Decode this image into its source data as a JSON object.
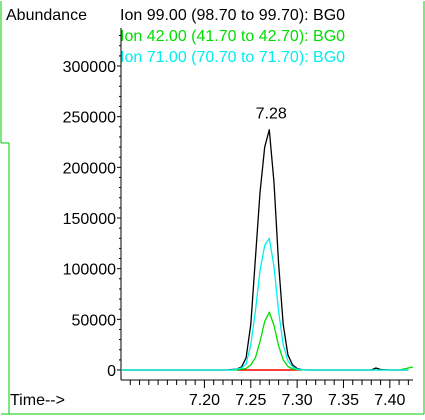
{
  "chart_data": {
    "type": "line",
    "ylabel": "Abundance",
    "xlabel": "Time-->",
    "xlim": [
      7.11,
      7.425
    ],
    "ylim": [
      0,
      350000
    ],
    "x_ticks": [
      7.2,
      7.25,
      7.3,
      7.35,
      7.4
    ],
    "x_tick_labels": [
      "7.20",
      "7.25",
      "7.30",
      "7.35",
      "7.40"
    ],
    "y_ticks": [
      0,
      50000,
      100000,
      150000,
      200000,
      250000,
      300000
    ],
    "y_tick_labels": [
      "0",
      "50000",
      "100000",
      "150000",
      "200000",
      "250000",
      "300000"
    ],
    "grid": false,
    "legend_position": "top",
    "annotations": [
      {
        "text": "7.28",
        "x": 7.272,
        "y": 248000
      }
    ],
    "baseline_color": "#ff0000",
    "frame_color": "#00cc00",
    "series": [
      {
        "name": "Ion  99.00 (98.70 to 99.70): BG0",
        "color": "#000000",
        "x": [
          7.11,
          7.225,
          7.235,
          7.24,
          7.245,
          7.25,
          7.255,
          7.26,
          7.265,
          7.27,
          7.275,
          7.28,
          7.285,
          7.29,
          7.295,
          7.3,
          7.305,
          7.31,
          7.38,
          7.385,
          7.39,
          7.4,
          7.42
        ],
        "y": [
          0,
          0,
          1000,
          3000,
          12000,
          45000,
          110000,
          175000,
          220000,
          237000,
          185000,
          105000,
          45000,
          15000,
          5000,
          1500,
          500,
          0,
          0,
          2000,
          500,
          0,
          0
        ]
      },
      {
        "name": "Ion  42.00 (41.70 to 42.70): BG0",
        "color": "#00dd00",
        "x": [
          7.11,
          7.235,
          7.245,
          7.25,
          7.255,
          7.26,
          7.265,
          7.27,
          7.275,
          7.28,
          7.285,
          7.29,
          7.295,
          7.3,
          7.31,
          7.41,
          7.425
        ],
        "y": [
          0,
          0,
          1500,
          5000,
          12000,
          28000,
          48000,
          57000,
          44000,
          24000,
          10000,
          3500,
          1000,
          300,
          0,
          0,
          3000
        ]
      },
      {
        "name": "Ion  71.00 (70.70 to 71.70): BG0",
        "color": "#00eeee",
        "x": [
          7.11,
          7.23,
          7.24,
          7.245,
          7.25,
          7.255,
          7.26,
          7.265,
          7.27,
          7.275,
          7.28,
          7.285,
          7.29,
          7.295,
          7.3,
          7.31,
          7.42
        ],
        "y": [
          0,
          0,
          2000,
          6000,
          25000,
          58000,
          98000,
          123000,
          130000,
          102000,
          58000,
          25000,
          9000,
          3000,
          800,
          0,
          0
        ]
      }
    ]
  }
}
